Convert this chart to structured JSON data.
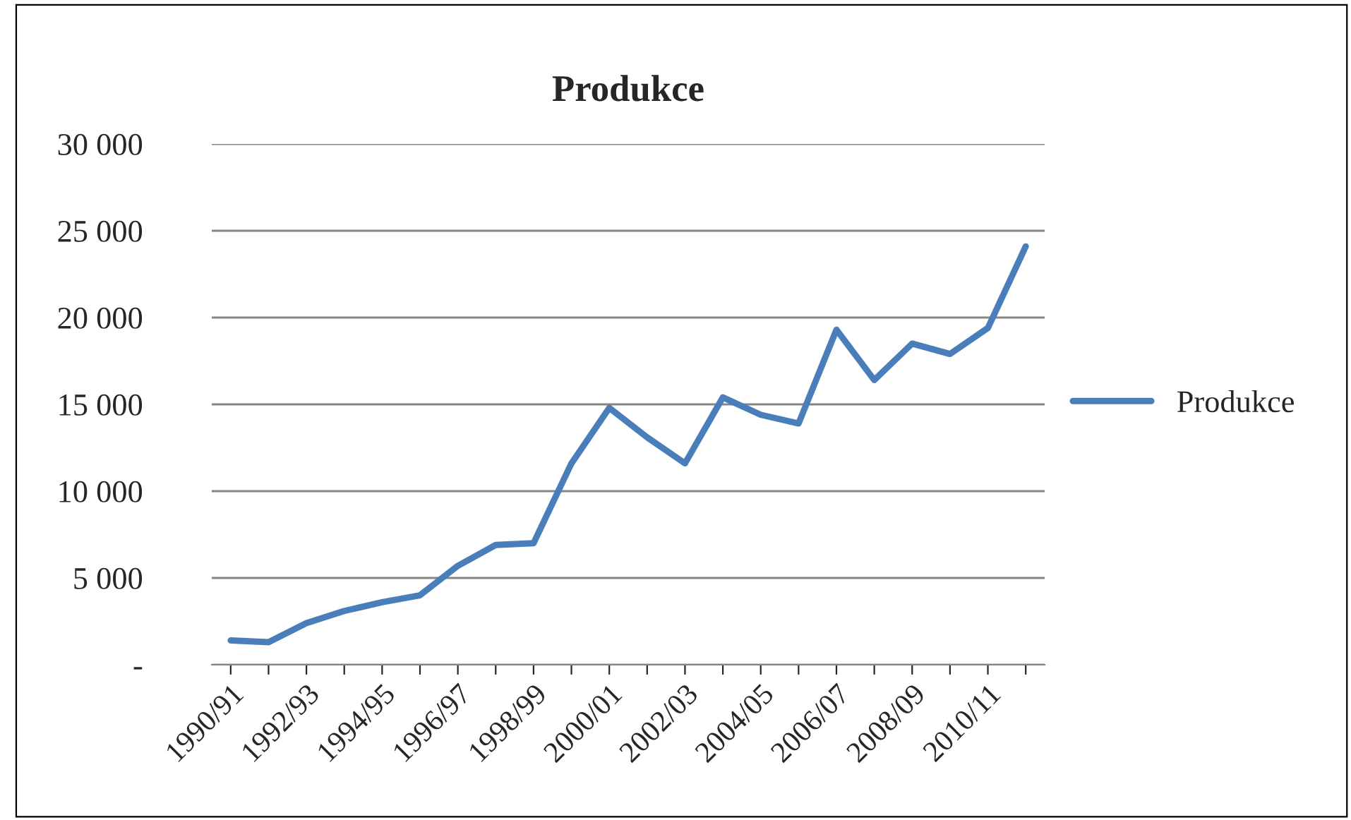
{
  "chart_data": {
    "type": "line",
    "title": "Produkce",
    "categories": [
      "1990/91",
      null,
      "1992/93",
      null,
      "1994/95",
      null,
      "1996/97",
      null,
      "1998/99",
      null,
      "2000/01",
      null,
      "2002/03",
      null,
      "2004/05",
      null,
      "2006/07",
      null,
      "2008/09",
      null,
      "2010/11",
      null
    ],
    "series": [
      {
        "name": "Produkce",
        "color": "#4a7ebb",
        "values": [
          1400,
          1300,
          2400,
          3100,
          3600,
          4000,
          5700,
          6900,
          7000,
          11600,
          14800,
          13100,
          11600,
          15400,
          14400,
          13900,
          19300,
          16400,
          18500,
          17900,
          19400,
          24100
        ]
      }
    ],
    "ylim": [
      0,
      30000
    ],
    "yticks": [
      {
        "value": 0,
        "label": "-"
      },
      {
        "value": 5000,
        "label": "5 000"
      },
      {
        "value": 10000,
        "label": "10 000"
      },
      {
        "value": 15000,
        "label": "15 000"
      },
      {
        "value": 20000,
        "label": "20 000"
      },
      {
        "value": 25000,
        "label": "25 000"
      },
      {
        "value": 30000,
        "label": "30 000"
      }
    ],
    "grid": "y",
    "legend": "right",
    "marker": "none",
    "line_style": "solid"
  }
}
